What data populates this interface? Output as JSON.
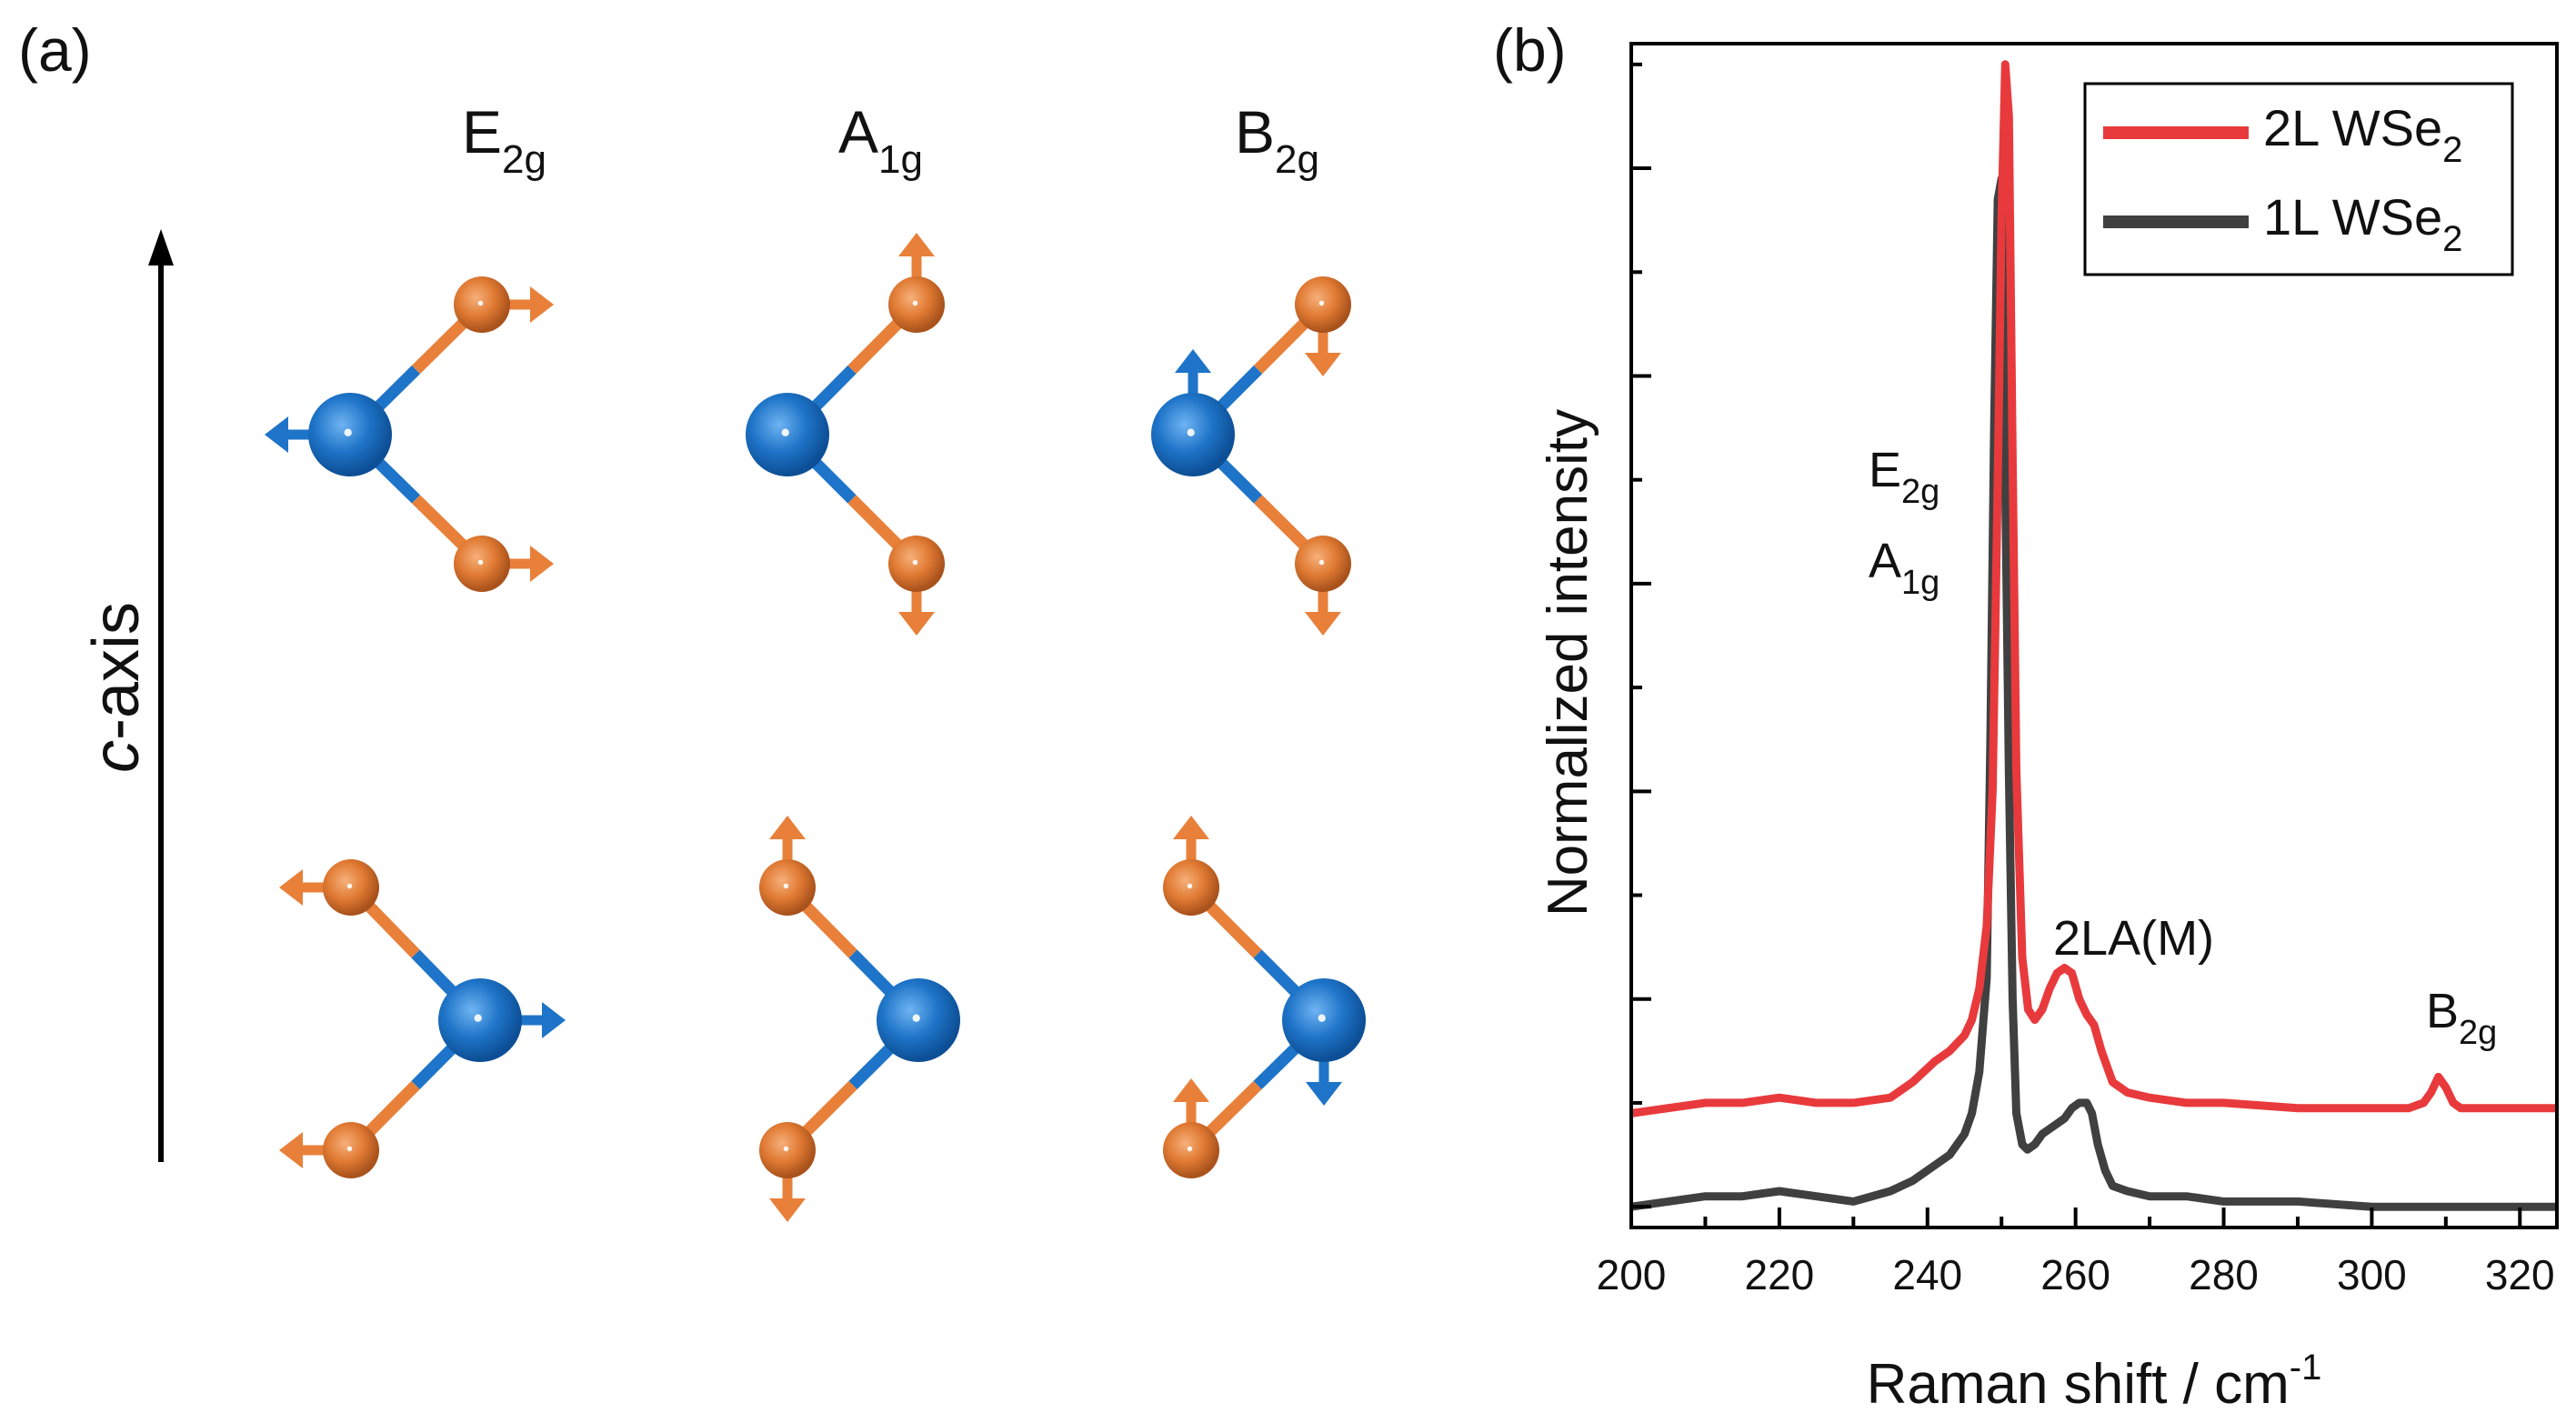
{
  "panel_a": {
    "label": "(a)",
    "axis_label_italic": "c",
    "axis_label_rest": "-axis",
    "modes": [
      {
        "base": "E",
        "sub": "2g"
      },
      {
        "base": "A",
        "sub": "1g"
      },
      {
        "base": "B",
        "sub": "2g"
      }
    ]
  },
  "colors": {
    "tungsten": "#1e74c8",
    "selenium": "#e8803a",
    "curve_2L": "#e83a3c",
    "curve_1L": "#404040"
  },
  "chart_data": {
    "panel_label": "(b)",
    "type": "line",
    "xlabel_main": "Raman shift / cm",
    "xlabel_sup": "-1",
    "ylabel": "Normalized intensity",
    "xlim": [
      200,
      325
    ],
    "ylim": [
      -0.02,
      1.12
    ],
    "xticks": [
      200,
      220,
      240,
      260,
      280,
      300,
      320
    ],
    "legend_position": "top-right",
    "annotations": [
      {
        "base": "E",
        "sub": "2g"
      },
      {
        "base": "A",
        "sub": "1g"
      },
      {
        "base": "2LA(M)",
        "sub": ""
      },
      {
        "base": "B",
        "sub": "2g"
      }
    ],
    "series": [
      {
        "name": "2L WSe",
        "name_sub": "2",
        "x": [
          200,
          205,
          210,
          215,
          220,
          225,
          230,
          235,
          238,
          241,
          243,
          245,
          246,
          247,
          248,
          248.8,
          249.5,
          250,
          250.5,
          251,
          251.5,
          252,
          252.8,
          253.6,
          254.5,
          255.5,
          256.5,
          257.5,
          258.5,
          259.5,
          260.5,
          261.5,
          262.5,
          263.5,
          265,
          267,
          270,
          275,
          280,
          290,
          300,
          305,
          307,
          308,
          309,
          310,
          311,
          312,
          315,
          320,
          325
        ],
        "values": [
          0.09,
          0.095,
          0.1,
          0.1,
          0.105,
          0.1,
          0.1,
          0.105,
          0.12,
          0.14,
          0.15,
          0.165,
          0.18,
          0.21,
          0.27,
          0.4,
          0.7,
          0.95,
          1.1,
          1.05,
          0.72,
          0.42,
          0.24,
          0.19,
          0.18,
          0.19,
          0.21,
          0.225,
          0.23,
          0.225,
          0.2,
          0.185,
          0.175,
          0.15,
          0.12,
          0.11,
          0.105,
          0.1,
          0.1,
          0.095,
          0.095,
          0.095,
          0.1,
          0.11,
          0.125,
          0.115,
          0.1,
          0.095,
          0.095,
          0.095,
          0.095
        ]
      },
      {
        "name": "1L WSe",
        "name_sub": "2",
        "x": [
          200,
          205,
          210,
          215,
          220,
          225,
          230,
          235,
          238,
          241,
          243,
          245,
          246,
          247,
          248,
          248.5,
          249,
          249.5,
          250,
          250.5,
          251,
          251.5,
          252,
          252.8,
          253.5,
          254.5,
          255.5,
          256.5,
          257.5,
          258.5,
          259.5,
          260.5,
          261.5,
          262.2,
          263,
          264,
          265,
          267,
          270,
          275,
          280,
          290,
          300,
          310,
          320,
          325
        ],
        "values": [
          0,
          0.005,
          0.01,
          0.01,
          0.015,
          0.01,
          0.005,
          0.015,
          0.025,
          0.04,
          0.05,
          0.07,
          0.09,
          0.13,
          0.22,
          0.45,
          0.75,
          0.97,
          0.99,
          0.7,
          0.42,
          0.2,
          0.09,
          0.06,
          0.055,
          0.06,
          0.07,
          0.075,
          0.08,
          0.085,
          0.095,
          0.1,
          0.1,
          0.09,
          0.06,
          0.035,
          0.02,
          0.015,
          0.01,
          0.01,
          0.005,
          0.005,
          0,
          0,
          0,
          0
        ]
      }
    ]
  }
}
